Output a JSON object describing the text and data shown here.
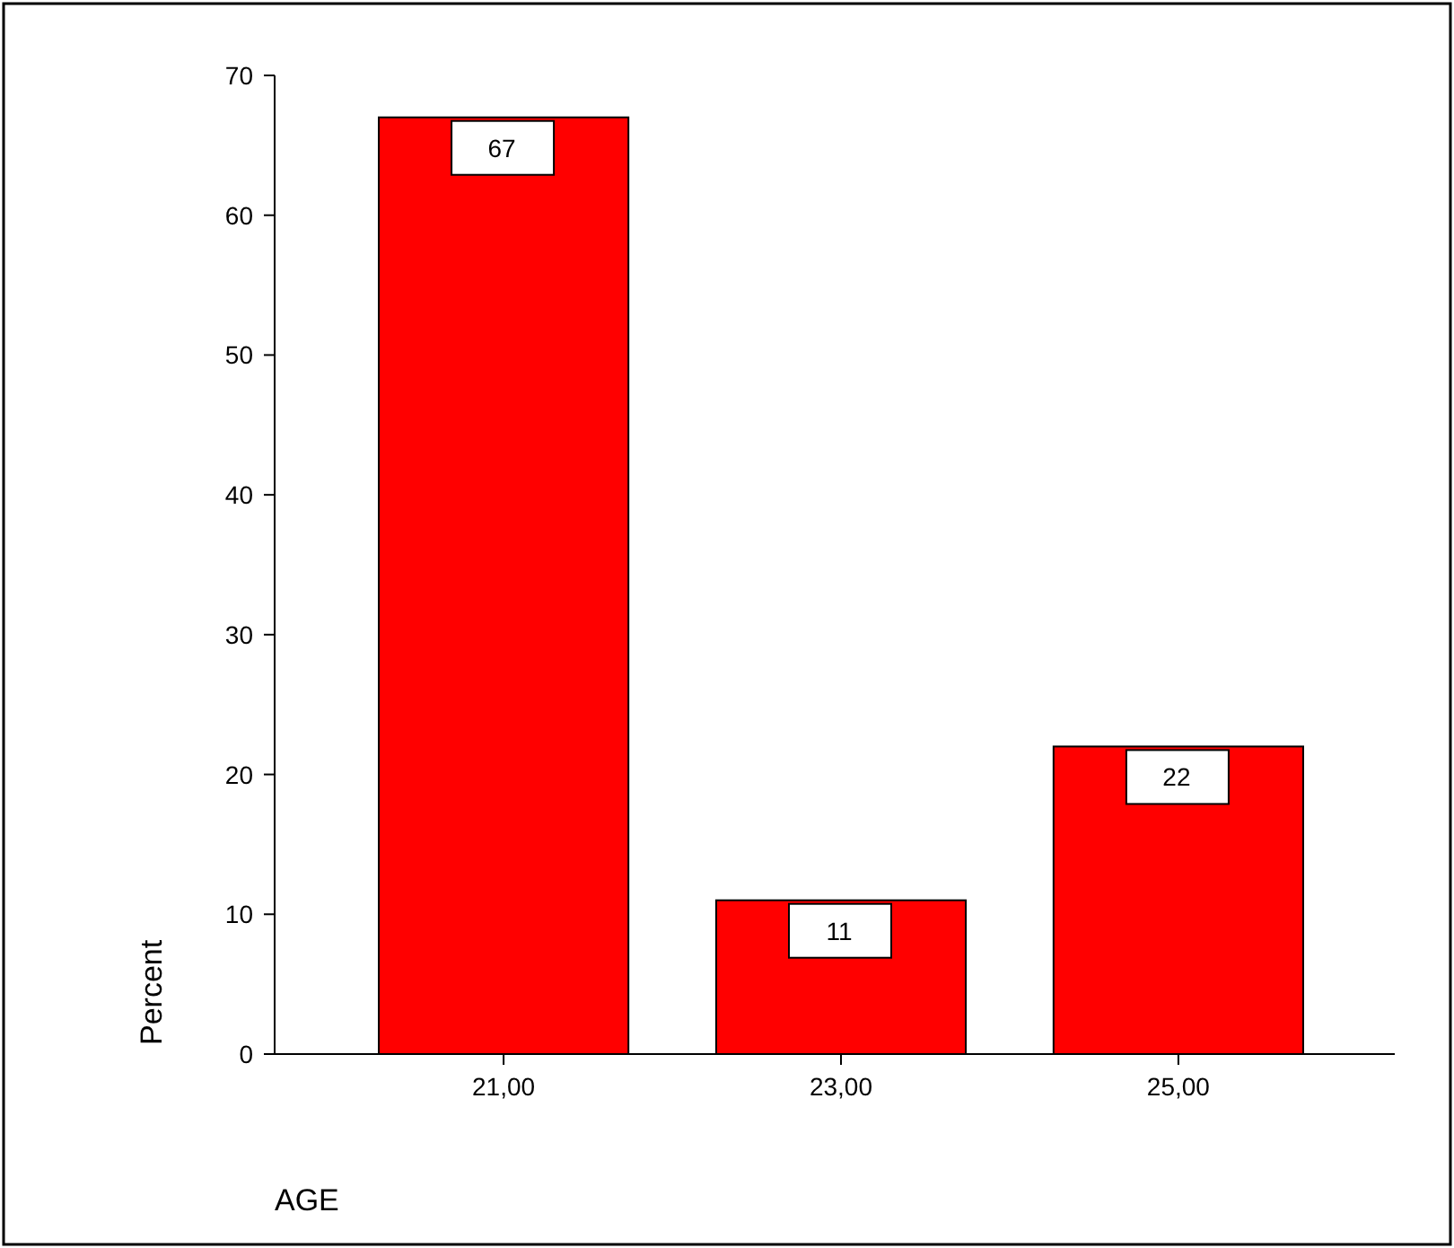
{
  "chart_data": {
    "type": "bar",
    "categories": [
      "21,00",
      "23,00",
      "25,00"
    ],
    "values": [
      67,
      11,
      22
    ],
    "color": "#ff0000",
    "ylim": [
      0,
      70
    ],
    "yticks": [
      0,
      10,
      20,
      30,
      40,
      50,
      60,
      70
    ],
    "ylabel": "Percent",
    "xlabel": "AGE",
    "data_labels": true
  }
}
